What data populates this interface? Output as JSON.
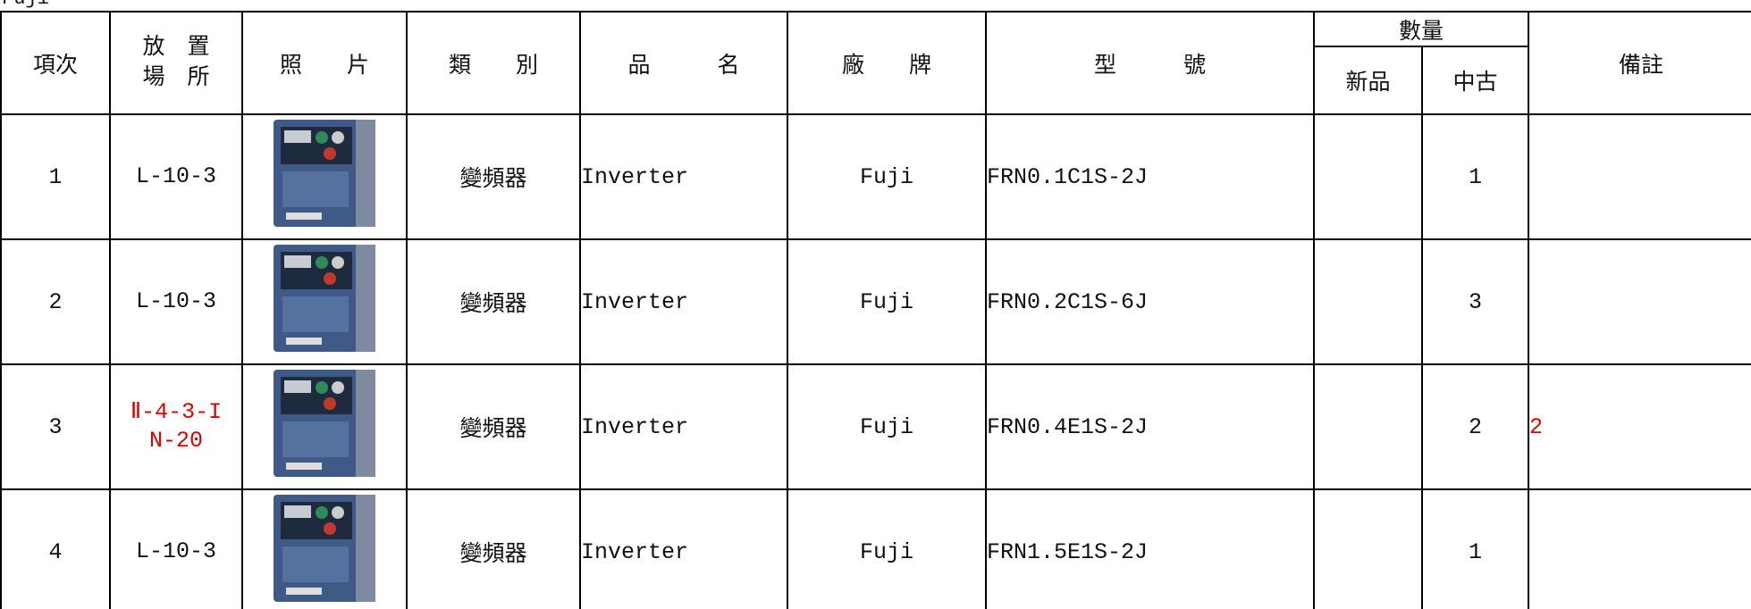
{
  "caption": "Fuji",
  "table": {
    "header": {
      "no": "項次",
      "location": [
        "放　置",
        "場　所"
      ],
      "photo": "照　　片",
      "category": "類　　別",
      "name": "品　　　名",
      "brand": "廠　　牌",
      "model": "型　　　號",
      "qty": "數量",
      "new": "新品",
      "used": "中古",
      "remark": "備註"
    },
    "rows": [
      {
        "no": 1,
        "location": "L-10-3",
        "category": "變頻器",
        "name": "Inverter",
        "brand": "Fuji",
        "model": "FRN0.1C1S-2J",
        "used": 1
      },
      {
        "no": 2,
        "location": "L-10-3",
        "category": "變頻器",
        "name": "Inverter",
        "brand": "Fuji",
        "model": "FRN0.2C1S-6J",
        "used": 3
      },
      {
        "no": 3,
        "location": "Ⅱ-4-3-IN-20",
        "category": "變頻器",
        "name": "Inverter",
        "brand": "Fuji",
        "model": "FRN0.4E1S-2J",
        "used": 2,
        "remark": 2
      },
      {
        "no": 4,
        "location": "L-10-3",
        "category": "變頻器",
        "name": "Inverter",
        "brand": "Fuji",
        "model": "FRN1.5E1S-2J",
        "used": 1
      }
    ]
  }
}
